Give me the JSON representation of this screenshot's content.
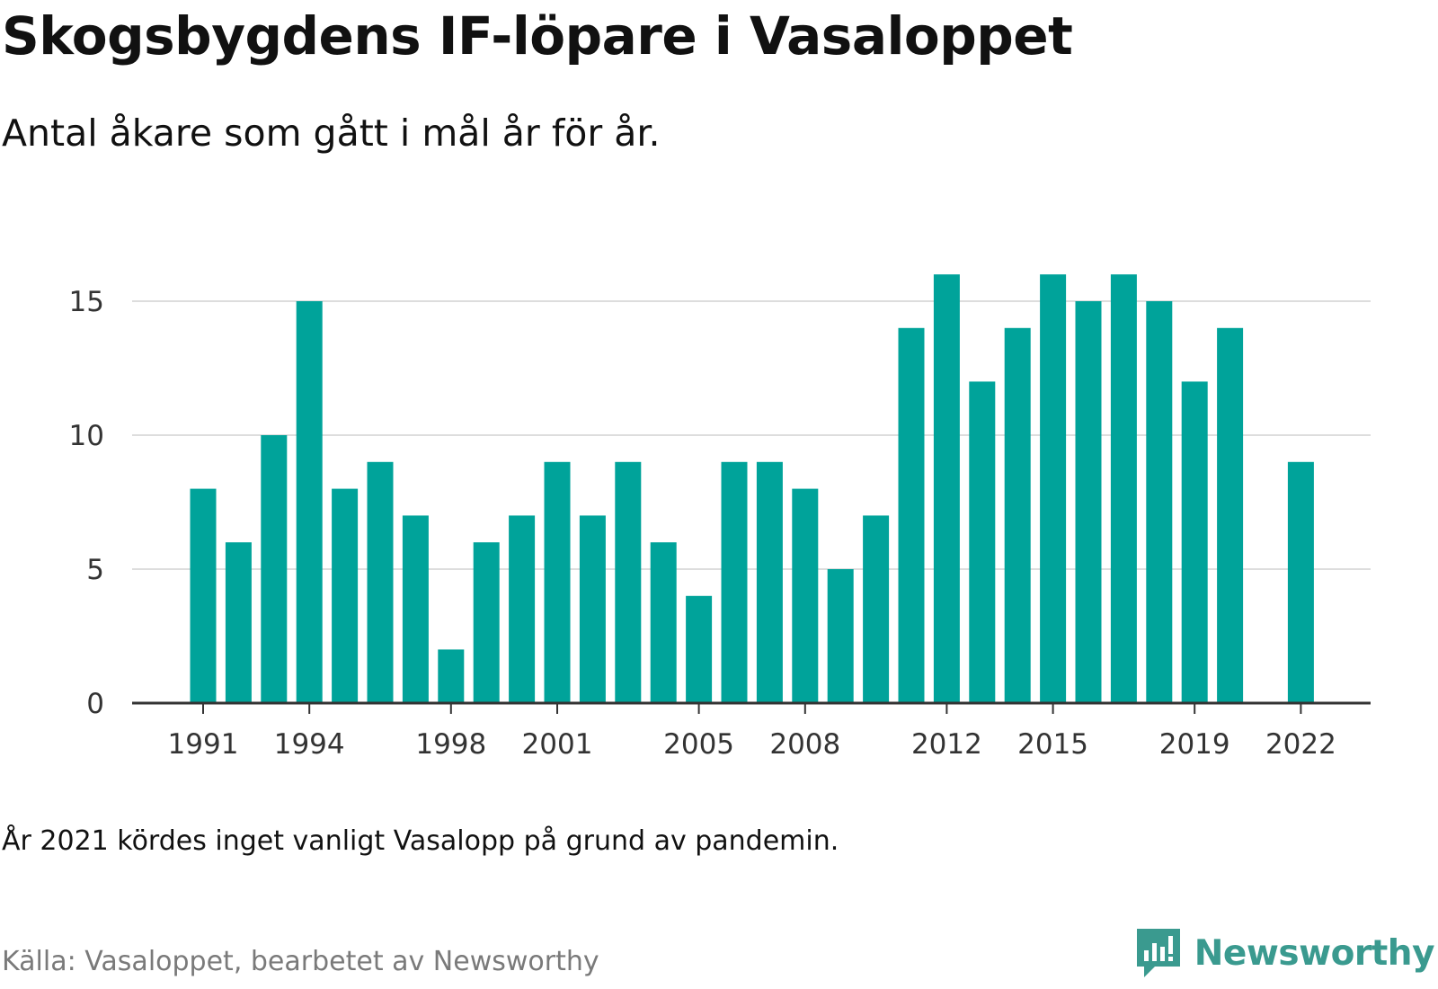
{
  "header": {
    "title": "Skogsbygdens IF-löpare i Vasaloppet",
    "subtitle": "Antal åkare som gått i mål år för år."
  },
  "footer": {
    "note": "År 2021 kördes inget vanligt Vasalopp på grund av pandemin.",
    "source": "Källa: Vasaloppet, bearbetet av Newsworthy",
    "brand": "Newsworthy",
    "brand_icon": "newsworthy-chart-logo-icon"
  },
  "colors": {
    "bar": "#00a39a",
    "grid": "#dddddd",
    "axis": "#333333",
    "brand": "#3a9a8f"
  },
  "chart_data": {
    "type": "bar",
    "categories": [
      1991,
      1992,
      1993,
      1994,
      1995,
      1996,
      1997,
      1998,
      1999,
      2000,
      2001,
      2002,
      2003,
      2004,
      2005,
      2006,
      2007,
      2008,
      2009,
      2010,
      2011,
      2012,
      2013,
      2014,
      2015,
      2016,
      2017,
      2018,
      2019,
      2020,
      2021,
      2022
    ],
    "values": [
      8,
      6,
      10,
      15,
      8,
      9,
      7,
      2,
      6,
      7,
      9,
      7,
      9,
      6,
      4,
      9,
      9,
      8,
      5,
      7,
      14,
      16,
      12,
      14,
      16,
      15,
      16,
      15,
      12,
      14,
      null,
      9
    ],
    "title": "Skogsbygdens IF-löpare i Vasaloppet",
    "subtitle": "Antal åkare som gått i mål år för år.",
    "xlabel": "",
    "ylabel": "",
    "ylim": [
      0,
      16
    ],
    "yticks": [
      0,
      5,
      10,
      15
    ],
    "xticks": [
      1991,
      1994,
      1998,
      2001,
      2005,
      2008,
      2012,
      2015,
      2019,
      2022
    ],
    "grid": true,
    "legend": "none"
  }
}
